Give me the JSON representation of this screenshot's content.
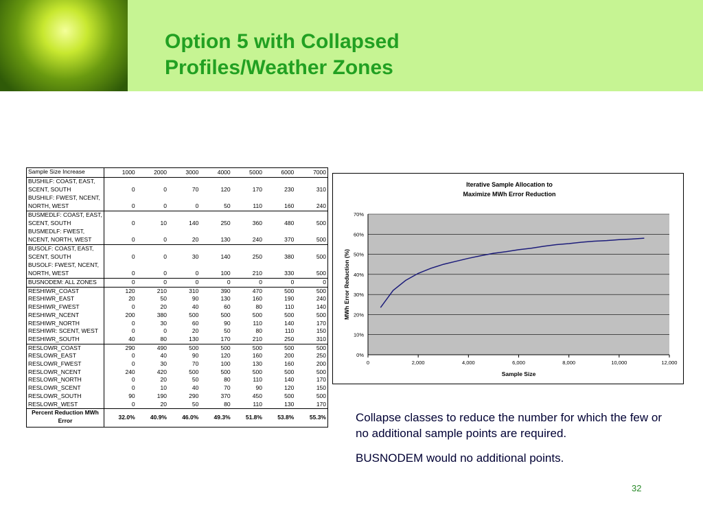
{
  "header": {
    "title": [
      "Option 5 with Collapsed",
      "Profiles/Weather Zones"
    ]
  },
  "table": {
    "header": [
      "Sample Size Increase",
      1000,
      2000,
      3000,
      4000,
      5000,
      6000,
      7000
    ],
    "groups": [
      [
        [
          "BUSHILF: COAST, EAST, SCENT, SOUTH",
          0,
          0,
          70,
          120,
          170,
          230,
          310
        ],
        [
          "BUSHILF: FWEST, NCENT, NORTH, WEST",
          0,
          0,
          0,
          50,
          110,
          160,
          240
        ]
      ],
      [
        [
          "BUSMEDLF: COAST, EAST, SCENT, SOUTH",
          0,
          10,
          140,
          250,
          360,
          480,
          500
        ],
        [
          "BUSMEDLF: FWEST, NCENT, NORTH, WEST",
          0,
          0,
          20,
          130,
          240,
          370,
          500
        ]
      ],
      [
        [
          "BUSOLF: COAST, EAST, SCENT, SOUTH",
          0,
          0,
          30,
          140,
          250,
          380,
          500
        ],
        [
          "BUSOLF: FWEST, NCENT, NORTH, WEST",
          0,
          0,
          0,
          100,
          210,
          330,
          500
        ]
      ],
      [
        [
          "BUSNODEM: ALL ZONES",
          0,
          0,
          0,
          0,
          0,
          0,
          0
        ]
      ],
      [
        [
          "RESHIWR_COAST",
          120,
          210,
          310,
          390,
          470,
          500,
          500
        ],
        [
          "RESHIWR_EAST",
          20,
          50,
          90,
          130,
          160,
          190,
          240
        ],
        [
          "RESHIWR_FWEST",
          0,
          20,
          40,
          60,
          80,
          110,
          140
        ],
        [
          "RESHIWR_NCENT",
          200,
          380,
          500,
          500,
          500,
          500,
          500
        ],
        [
          "RESHIWR_NORTH",
          0,
          30,
          60,
          90,
          110,
          140,
          170
        ],
        [
          "RESHIWR: SCENT, WEST",
          0,
          0,
          20,
          50,
          80,
          110,
          150
        ],
        [
          "RESHIWR_SOUTH",
          40,
          80,
          130,
          170,
          210,
          250,
          310
        ]
      ],
      [
        [
          "RESLOWR_COAST",
          290,
          490,
          500,
          500,
          500,
          500,
          500
        ],
        [
          "RESLOWR_EAST",
          0,
          40,
          90,
          120,
          160,
          200,
          250
        ],
        [
          "RESLOWR_FWEST",
          0,
          30,
          70,
          100,
          130,
          160,
          200
        ],
        [
          "RESLOWR_NCENT",
          240,
          420,
          500,
          500,
          500,
          500,
          500
        ],
        [
          "RESLOWR_NORTH",
          0,
          20,
          50,
          80,
          110,
          140,
          170
        ],
        [
          "RESLOWR_SCENT",
          0,
          10,
          40,
          70,
          90,
          120,
          150
        ],
        [
          "RESLOWR_SOUTH",
          90,
          190,
          290,
          370,
          450,
          500,
          500
        ],
        [
          "RESLOWR_WEST",
          0,
          20,
          50,
          80,
          110,
          130,
          170
        ]
      ]
    ],
    "footer": [
      "Percent Reduction MWh Error",
      "32.0%",
      "40.9%",
      "46.0%",
      "49.3%",
      "51.8%",
      "53.8%",
      "55.3%"
    ]
  },
  "chart_data": {
    "type": "line",
    "title": [
      "Iterative Sample Allocation to",
      "Maximize MWh Error Reduction"
    ],
    "x_label": "Sample Size",
    "y_label": "MWh Error Reduction (%)",
    "x": [
      500,
      1000,
      1500,
      2000,
      2500,
      3000,
      3500,
      4000,
      4500,
      5000,
      5500,
      6000,
      6500,
      7000,
      7500,
      8000,
      8500,
      9000,
      9500,
      10000,
      10500,
      11000
    ],
    "series": [
      {
        "color": "#1c1c7a",
        "values": [
          23.5,
          32,
          37,
          40.5,
          43,
          45,
          46.5,
          48,
          49.3,
          50.5,
          51.3,
          52.3,
          53,
          54,
          54.8,
          55.3,
          56,
          56.5,
          56.8,
          57.3,
          57.6,
          58
        ]
      }
    ],
    "xlim": [
      0,
      12000
    ],
    "ylim": [
      0,
      70
    ],
    "xticks": [
      0,
      {
        "value": 2000,
        "label": "2,000"
      },
      {
        "value": 4000,
        "label": "4,000"
      },
      {
        "value": 6000,
        "label": "6,000"
      },
      {
        "value": 8000,
        "label": "8,000"
      },
      {
        "value": 10000,
        "label": "10,000"
      },
      {
        "value": 12000,
        "label": "12,000"
      }
    ],
    "yticks": [
      {
        "value": 0,
        "label": "0%"
      },
      {
        "value": 10,
        "label": "10%"
      },
      {
        "value": 20,
        "label": "20%"
      },
      {
        "value": 30,
        "label": "30%"
      },
      {
        "value": 40,
        "label": "40%"
      },
      {
        "value": 50,
        "label": "50%"
      },
      {
        "value": 60,
        "label": "60%"
      },
      {
        "value": 70,
        "label": "70%"
      }
    ],
    "grid": true
  },
  "notes": [
    "Collapse classes to reduce the number for which the few or no additional sample points are required.",
    "BUSNODEM would no additional points."
  ],
  "page_number": "32"
}
